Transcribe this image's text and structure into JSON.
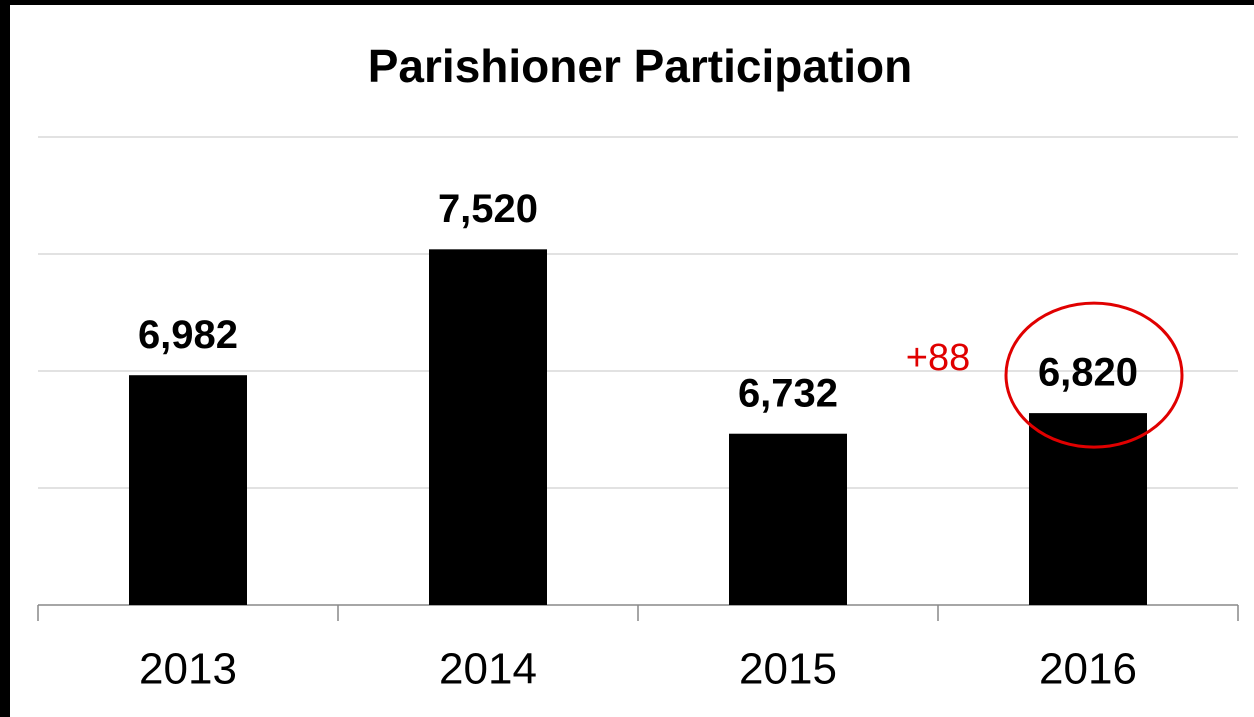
{
  "chart_data": {
    "type": "bar",
    "title": "Parishioner Participation",
    "categories": [
      "2013",
      "2014",
      "2015",
      "2016"
    ],
    "values": [
      6982,
      7520,
      6732,
      6820
    ],
    "value_labels": [
      "6,982",
      "7,520",
      "6,732",
      "6,820"
    ],
    "color": "#000000",
    "ylim": [
      6000,
      8000
    ],
    "yticks": [
      6000,
      6500,
      7000,
      7500,
      8000
    ],
    "grid": true,
    "annotation": "+88"
  }
}
